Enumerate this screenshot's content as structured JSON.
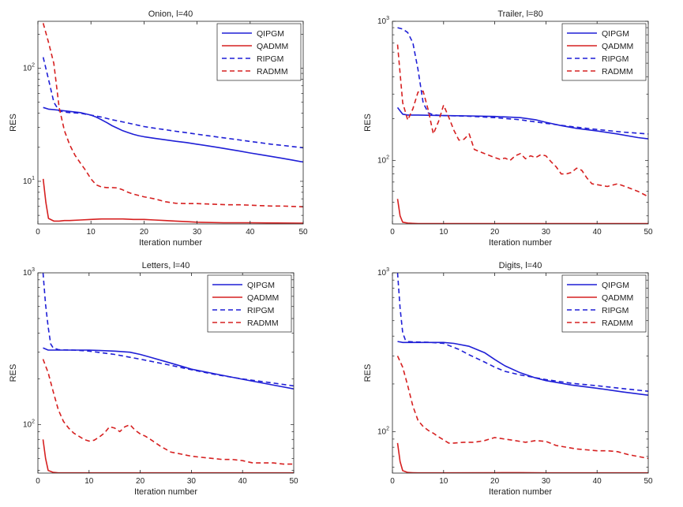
{
  "colors": {
    "blue": "#1f1fd6",
    "red": "#d62020",
    "axis": "#222222"
  },
  "chart_data": [
    {
      "type": "line",
      "title": "Onion, l=40",
      "xlabel": "Iteration number",
      "ylabel": "RES",
      "xlim": [
        0,
        50
      ],
      "ylim": [
        4.2,
        260
      ],
      "yscale": "log",
      "xticks": [
        "0",
        "10",
        "20",
        "30",
        "40",
        "50"
      ],
      "yticks": [
        {
          "value": 10,
          "base": "10",
          "exp": "1"
        },
        {
          "value": 100,
          "base": "10",
          "exp": "2"
        }
      ],
      "legend_position": "top-right",
      "series": [
        {
          "name": "QIPGM",
          "style": "solid",
          "color": "blue",
          "x": [
            1,
            2,
            3,
            4,
            5,
            6,
            7,
            8,
            9,
            10,
            11,
            12,
            13,
            14,
            15,
            16,
            17,
            18,
            19,
            20,
            22,
            24,
            26,
            28,
            30,
            32,
            34,
            36,
            38,
            40,
            42,
            44,
            46,
            48,
            50
          ],
          "y": [
            45,
            43.5,
            43,
            42.5,
            42,
            41.5,
            41,
            40.5,
            39.5,
            38.5,
            37,
            35,
            33,
            31,
            29.5,
            28,
            27,
            26,
            25.3,
            24.8,
            24,
            23.3,
            22.6,
            22,
            21.3,
            20.6,
            19.9,
            19.2,
            18.5,
            17.8,
            17.2,
            16.6,
            16,
            15.4,
            14.8
          ]
        },
        {
          "name": "QADMM",
          "style": "solid",
          "color": "red",
          "x": [
            1,
            1.5,
            2,
            3,
            4,
            5,
            6,
            8,
            10,
            12,
            14,
            16,
            18,
            20,
            22,
            24,
            26,
            28,
            30,
            35,
            40,
            45,
            50
          ],
          "y": [
            10.5,
            6.5,
            4.7,
            4.45,
            4.45,
            4.5,
            4.5,
            4.55,
            4.6,
            4.65,
            4.65,
            4.65,
            4.6,
            4.6,
            4.55,
            4.5,
            4.45,
            4.4,
            4.35,
            4.3,
            4.3,
            4.28,
            4.27
          ]
        },
        {
          "name": "RIPGM",
          "style": "dashed",
          "color": "blue",
          "x": [
            1,
            2,
            3,
            4,
            5,
            6,
            8,
            10,
            12,
            14,
            16,
            18,
            20,
            22,
            24,
            26,
            28,
            30,
            32,
            34,
            36,
            38,
            40,
            42,
            44,
            46,
            48,
            50
          ],
          "y": [
            125,
            80,
            50,
            42,
            41,
            40.5,
            40,
            38.5,
            37,
            35,
            33.5,
            32,
            30.5,
            29.5,
            28.6,
            27.7,
            26.9,
            26.1,
            25.3,
            24.6,
            23.9,
            23.2,
            22.5,
            21.9,
            21.3,
            20.8,
            20.3,
            19.8
          ]
        },
        {
          "name": "RADMM",
          "style": "dashed",
          "color": "red",
          "x": [
            1,
            2,
            3,
            4,
            5,
            6,
            7,
            8,
            9,
            10,
            11,
            12,
            13,
            14,
            15,
            16,
            17,
            18,
            19,
            20,
            22,
            24,
            26,
            28,
            30,
            32,
            34,
            36,
            38,
            40,
            42,
            44,
            46,
            48,
            50
          ],
          "y": [
            250,
            170,
            110,
            45,
            28,
            21,
            17,
            14.5,
            12.5,
            10.5,
            9.3,
            8.9,
            8.8,
            8.8,
            8.75,
            8.4,
            8,
            7.7,
            7.5,
            7.3,
            7,
            6.6,
            6.4,
            6.35,
            6.35,
            6.3,
            6.25,
            6.2,
            6.2,
            6.15,
            6.1,
            6.05,
            6.05,
            6,
            5.95
          ]
        }
      ]
    },
    {
      "type": "line",
      "title": "Trailer, l=80",
      "xlabel": "Iteration number",
      "ylabel": "RES",
      "xlim": [
        0,
        50
      ],
      "ylim": [
        35,
        1000
      ],
      "yscale": "log",
      "xticks": [
        "0",
        "10",
        "20",
        "30",
        "40",
        "50"
      ],
      "yticks": [
        {
          "value": 100,
          "base": "10",
          "exp": "2"
        },
        {
          "value": 1000,
          "base": "10",
          "exp": "3"
        }
      ],
      "legend_position": "top-right",
      "series": [
        {
          "name": "QIPGM",
          "style": "solid",
          "color": "blue",
          "x": [
            1,
            2,
            3,
            4,
            5,
            10,
            15,
            20,
            25,
            28,
            30,
            33,
            36,
            40,
            44,
            48,
            50
          ],
          "y": [
            240,
            215,
            212,
            212,
            212,
            210,
            209,
            207,
            203,
            196,
            188,
            178,
            170,
            163,
            155,
            146,
            143
          ]
        },
        {
          "name": "QADMM",
          "style": "solid",
          "color": "red",
          "x": [
            1,
            1.5,
            2,
            3,
            4,
            5,
            10,
            20,
            30,
            40,
            50
          ],
          "y": [
            53,
            40,
            36,
            35.5,
            35.3,
            35.2,
            35.2,
            35.2,
            35.2,
            35.2,
            35.2
          ]
        },
        {
          "name": "RIPGM",
          "style": "dashed",
          "color": "blue",
          "x": [
            1,
            2,
            3,
            4,
            5,
            6,
            7,
            8,
            10,
            15,
            20,
            25,
            30,
            35,
            40,
            45,
            50
          ],
          "y": [
            900,
            880,
            830,
            700,
            450,
            260,
            220,
            213,
            210,
            208,
            203,
            196,
            185,
            175,
            167,
            160,
            155
          ]
        },
        {
          "name": "RADMM",
          "style": "dashed",
          "color": "red",
          "x": [
            1,
            2,
            3,
            4,
            5,
            6,
            7,
            8,
            9,
            10,
            11,
            12,
            13,
            14,
            15,
            16,
            18,
            20,
            21,
            22,
            23,
            24,
            25,
            26,
            27,
            28,
            29,
            30,
            31,
            32,
            33,
            34,
            35,
            36,
            37,
            38,
            39,
            40,
            42,
            44,
            46,
            48,
            50
          ],
          "y": [
            680,
            260,
            195,
            235,
            310,
            315,
            230,
            155,
            190,
            250,
            205,
            165,
            140,
            142,
            155,
            120,
            112,
            105,
            102,
            104,
            100,
            108,
            112,
            103,
            108,
            105,
            110,
            108,
            98,
            90,
            80,
            80,
            82,
            88,
            85,
            75,
            68,
            67,
            65,
            68,
            64,
            60,
            55
          ]
        }
      ]
    },
    {
      "type": "line",
      "title": "Letters, l=40",
      "xlabel": "Iteration number",
      "ylabel": "RES",
      "xlim": [
        0,
        50
      ],
      "ylim": [
        48,
        1000
      ],
      "yscale": "log",
      "xticks": [
        "0",
        "10",
        "20",
        "30",
        "40",
        "50"
      ],
      "yticks": [
        {
          "value": 100,
          "base": "10",
          "exp": "2"
        },
        {
          "value": 1000,
          "base": "10",
          "exp": "3"
        }
      ],
      "legend_position": "top-right",
      "series": [
        {
          "name": "QIPGM",
          "style": "solid",
          "color": "blue",
          "x": [
            1,
            2,
            3,
            5,
            10,
            15,
            18,
            20,
            22,
            25,
            28,
            30,
            35,
            40,
            45,
            50
          ],
          "y": [
            320,
            310,
            310,
            310,
            310,
            305,
            300,
            290,
            278,
            260,
            243,
            232,
            215,
            199,
            185,
            172
          ]
        },
        {
          "name": "QADMM",
          "style": "solid",
          "color": "red",
          "x": [
            1,
            1.5,
            2,
            3,
            4,
            5,
            10,
            20,
            30,
            40,
            50
          ],
          "y": [
            80,
            60,
            50,
            48.5,
            48.2,
            48.2,
            48.2,
            48.2,
            48.2,
            48.2,
            48.2
          ]
        },
        {
          "name": "RIPGM",
          "style": "dashed",
          "color": "blue",
          "x": [
            1,
            1.5,
            2,
            2.5,
            3,
            4,
            5,
            7,
            10,
            15,
            20,
            25,
            30,
            35,
            40,
            45,
            50
          ],
          "y": [
            1000,
            620,
            440,
            340,
            320,
            312,
            311,
            310,
            305,
            290,
            270,
            250,
            230,
            213,
            200,
            190,
            180
          ]
        },
        {
          "name": "RADMM",
          "style": "dashed",
          "color": "red",
          "x": [
            1,
            2,
            3,
            4,
            5,
            6,
            7,
            8,
            9,
            10,
            11,
            12,
            13,
            14,
            15,
            16,
            17,
            18,
            19,
            20,
            21,
            22,
            24,
            26,
            28,
            30,
            32,
            34,
            36,
            38,
            40,
            42,
            44,
            46,
            48,
            50
          ],
          "y": [
            270,
            220,
            165,
            125,
            105,
            95,
            88,
            84,
            80,
            78,
            79,
            83,
            88,
            97,
            95,
            90,
            97,
            100,
            92,
            87,
            84,
            80,
            72,
            66,
            64,
            62,
            61,
            60,
            59,
            59,
            58,
            56,
            56,
            56,
            55,
            55
          ]
        }
      ]
    },
    {
      "type": "line",
      "title": "Digits, l=40",
      "xlabel": "Iteration number",
      "ylabel": "RES",
      "xlim": [
        0,
        50
      ],
      "ylim": [
        55,
        1000
      ],
      "yscale": "log",
      "xticks": [
        "0",
        "10",
        "20",
        "30",
        "40",
        "50"
      ],
      "yticks": [
        {
          "value": 100,
          "base": "10",
          "exp": "2"
        },
        {
          "value": 1000,
          "base": "10",
          "exp": "3"
        }
      ],
      "legend_position": "top-right",
      "series": [
        {
          "name": "QIPGM",
          "style": "solid",
          "color": "blue",
          "x": [
            1,
            2,
            3,
            5,
            10,
            12,
            15,
            18,
            20,
            22,
            25,
            28,
            30,
            35,
            40,
            45,
            50
          ],
          "y": [
            370,
            365,
            365,
            365,
            365,
            360,
            345,
            315,
            285,
            260,
            235,
            218,
            210,
            197,
            188,
            178,
            170
          ]
        },
        {
          "name": "QADMM",
          "style": "solid",
          "color": "red",
          "x": [
            1,
            1.5,
            2,
            3,
            4,
            5,
            10,
            20,
            25,
            30,
            40,
            50
          ],
          "y": [
            85,
            65,
            57,
            55.5,
            55.3,
            55.2,
            55.2,
            55.3,
            55.4,
            55.2,
            55.2,
            55.2
          ]
        },
        {
          "name": "RIPGM",
          "style": "dashed",
          "color": "blue",
          "x": [
            1,
            1.5,
            2,
            2.5,
            3,
            4,
            5,
            7,
            10,
            13,
            15,
            18,
            20,
            22,
            25,
            30,
            35,
            40,
            45,
            50
          ],
          "y": [
            1000,
            600,
            420,
            380,
            370,
            368,
            367,
            366,
            360,
            330,
            305,
            275,
            255,
            240,
            228,
            213,
            202,
            195,
            187,
            180
          ]
        },
        {
          "name": "RADMM",
          "style": "dashed",
          "color": "red",
          "x": [
            1,
            2,
            3,
            4,
            5,
            6,
            7,
            8,
            9,
            10,
            11,
            12,
            14,
            16,
            18,
            20,
            22,
            24,
            26,
            28,
            30,
            32,
            34,
            36,
            38,
            40,
            42,
            44,
            46,
            48,
            50
          ],
          "y": [
            300,
            255,
            195,
            145,
            118,
            108,
            102,
            98,
            93,
            89,
            85,
            85,
            86,
            86,
            88,
            92,
            90,
            88,
            86,
            88,
            87,
            82,
            80,
            78,
            77,
            76,
            76,
            75,
            72,
            70,
            68
          ]
        }
      ]
    }
  ]
}
